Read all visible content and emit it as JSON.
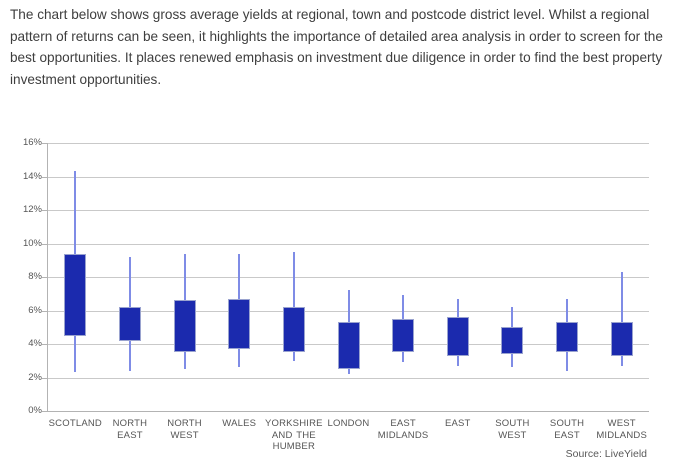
{
  "intro": {
    "text": "The chart below shows gross average yields at regional, town and postcode district level. Whilst a regional pattern of returns can be seen, it highlights the importance of detailed area analysis in order to screen for the best opportunities. It places renewed emphasis on investment due diligence in order to find the best property investment opportunities."
  },
  "chart_data": {
    "type": "boxplot",
    "title": "",
    "xlabel": "",
    "ylabel": "",
    "unit": "gross yield %",
    "ylim": [
      0,
      16
    ],
    "ytick_step": 2,
    "ytick_labels_top_to_bottom": [
      "16%",
      "14%",
      "12%",
      "10%",
      "8%",
      "6%",
      "4%",
      "2%",
      "0%"
    ],
    "grid": true,
    "legend_position": "none",
    "categories": [
      "SCOTLAND",
      "NORTH EAST",
      "NORTH WEST",
      "WALES",
      "YORKSHIRE AND THE HUMBER",
      "LONDON",
      "EAST MIDLANDS",
      "EAST",
      "SOUTH WEST",
      "SOUTH EAST",
      "WEST MIDLANDS"
    ],
    "values": [
      {
        "category": "SCOTLAND",
        "whisker_low": 2.3,
        "box_low": 4.5,
        "box_high": 9.4,
        "whisker_high": 14.3
      },
      {
        "category": "NORTH EAST",
        "whisker_low": 2.4,
        "box_low": 4.2,
        "box_high": 6.2,
        "whisker_high": 9.2
      },
      {
        "category": "NORTH WEST",
        "whisker_low": 2.5,
        "box_low": 3.5,
        "box_high": 6.6,
        "whisker_high": 9.4
      },
      {
        "category": "WALES",
        "whisker_low": 2.6,
        "box_low": 3.7,
        "box_high": 6.7,
        "whisker_high": 9.4
      },
      {
        "category": "YORKSHIRE AND THE HUMBER",
        "whisker_low": 3.0,
        "box_low": 3.5,
        "box_high": 6.2,
        "whisker_high": 9.5
      },
      {
        "category": "LONDON",
        "whisker_low": 2.2,
        "box_low": 2.5,
        "box_high": 5.3,
        "whisker_high": 7.2
      },
      {
        "category": "EAST MIDLANDS",
        "whisker_low": 2.9,
        "box_low": 3.5,
        "box_high": 5.5,
        "whisker_high": 6.9
      },
      {
        "category": "EAST",
        "whisker_low": 2.7,
        "box_low": 3.3,
        "box_high": 5.6,
        "whisker_high": 6.7
      },
      {
        "category": "SOUTH WEST",
        "whisker_low": 2.6,
        "box_low": 3.4,
        "box_high": 5.0,
        "whisker_high": 6.2
      },
      {
        "category": "SOUTH EAST",
        "whisker_low": 2.4,
        "box_low": 3.5,
        "box_high": 5.3,
        "whisker_high": 6.7
      },
      {
        "category": "WEST MIDLANDS",
        "whisker_low": 2.7,
        "box_low": 3.3,
        "box_high": 5.3,
        "whisker_high": 8.3
      }
    ],
    "colors": {
      "box_fill": "#1b2aae",
      "box_border": "#9aa3cf",
      "whisker": "#7f8ce6",
      "gridline": "#c9c9c9",
      "axis": "#b3b3b3",
      "label_text": "#555555",
      "body_text": "#3e3e3e"
    },
    "source": "Source: LiveYield"
  }
}
